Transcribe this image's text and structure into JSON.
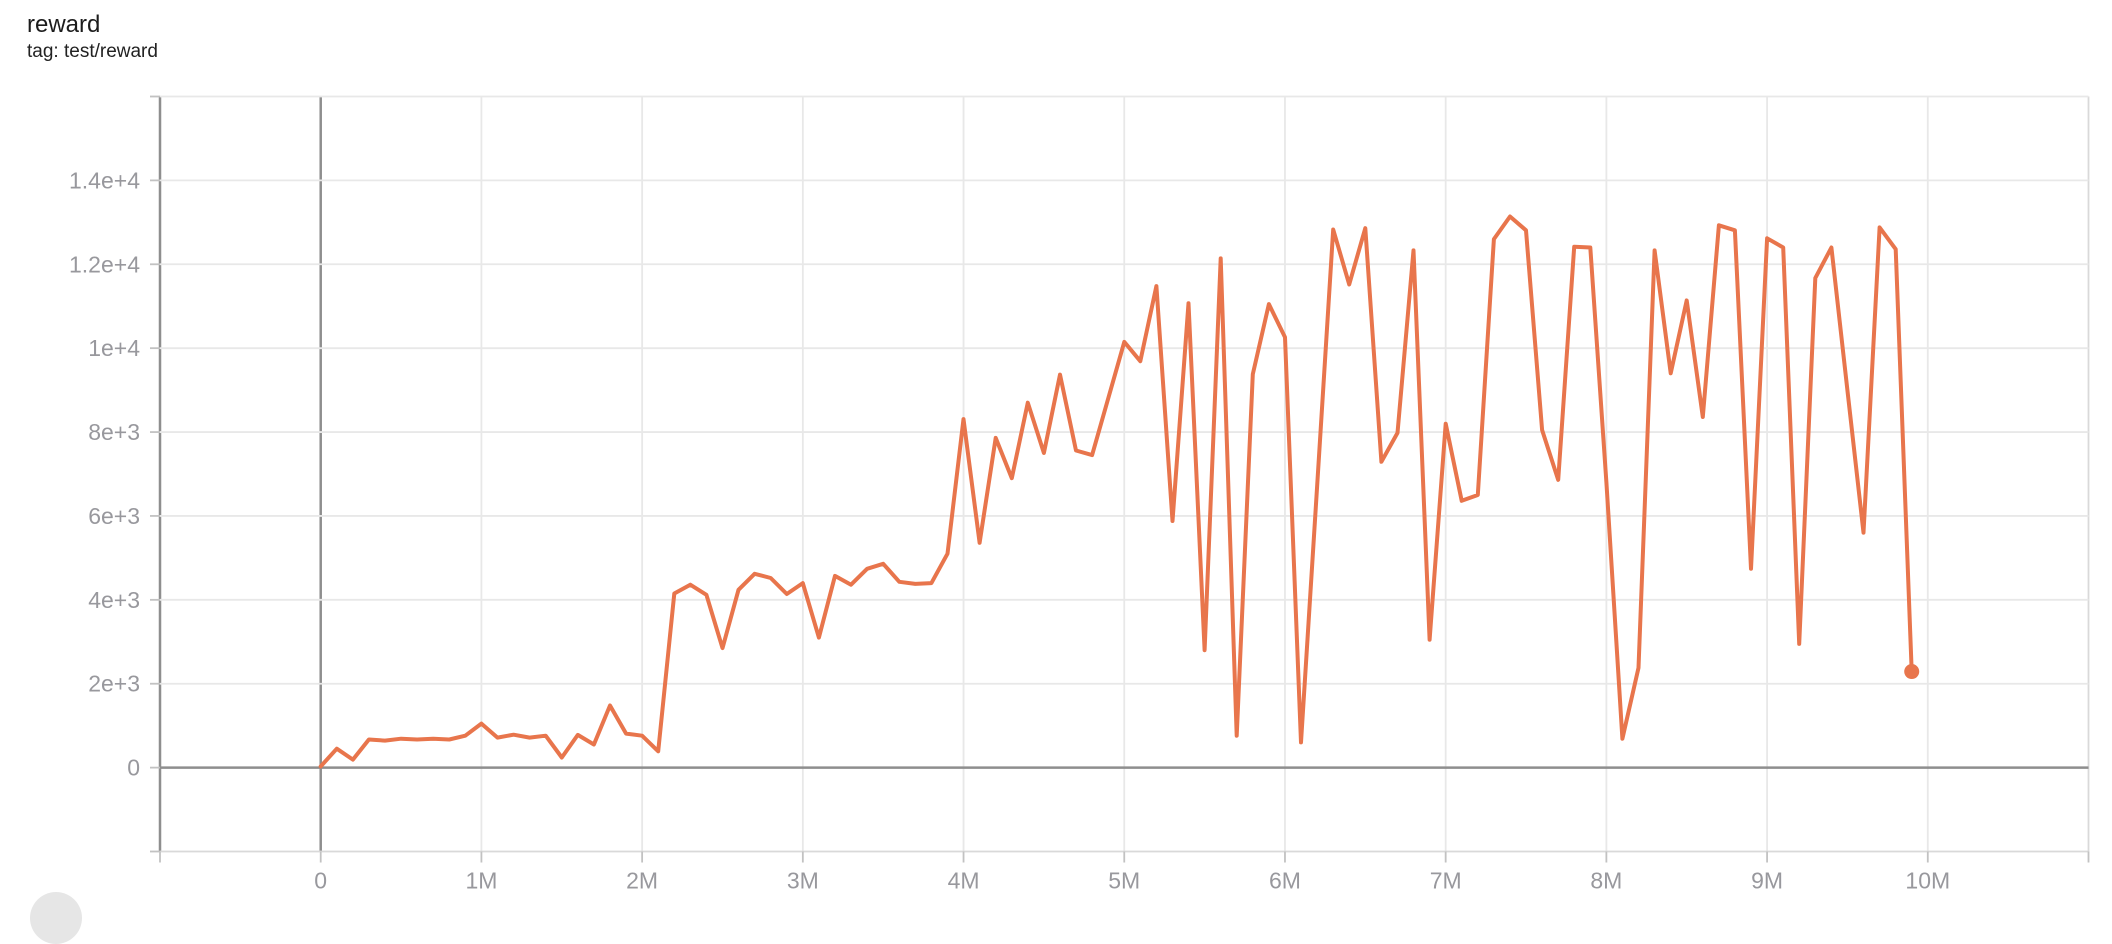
{
  "header": {
    "title": "reward",
    "subtitle": "tag: test/reward"
  },
  "colors": {
    "line": "#e8754c",
    "grid_light": "#e8e8e8",
    "axis_emphasis": "#8e8e8e",
    "plot_border": "#d9d9d9",
    "tick": "#c2c2c2",
    "tick_label": "#98989d",
    "title_text": "#1c1c1c"
  },
  "chart_data": {
    "type": "line",
    "title": "reward",
    "tag": "test/reward",
    "series_name": "test/reward",
    "x_unit": "M (millions of steps)",
    "xlim_millions": [
      -1,
      11
    ],
    "ylim": [
      -2000,
      16000
    ],
    "grid": true,
    "x_tick_values": [
      0,
      1,
      2,
      3,
      4,
      5,
      6,
      7,
      8,
      9,
      10
    ],
    "x_tick_labels": [
      "0",
      "1M",
      "2M",
      "3M",
      "4M",
      "5M",
      "6M",
      "7M",
      "8M",
      "9M",
      "10M"
    ],
    "y_tick_values": [
      0,
      2000,
      4000,
      6000,
      8000,
      10000,
      12000,
      14000
    ],
    "y_tick_labels": [
      "0",
      "2e+3",
      "4e+3",
      "6e+3",
      "8e+3",
      "1e+4",
      "1.2e+4",
      "1.4e+4"
    ],
    "end_marker": true,
    "x": [
      0.0,
      0.1,
      0.2,
      0.3,
      0.4,
      0.5,
      0.6,
      0.7,
      0.8,
      0.9,
      1.0,
      1.1,
      1.2,
      1.3,
      1.4,
      1.5,
      1.6,
      1.7,
      1.8,
      1.9,
      2.0,
      2.1,
      2.2,
      2.3,
      2.4,
      2.5,
      2.6,
      2.7,
      2.8,
      2.9,
      3.0,
      3.1,
      3.2,
      3.3,
      3.4,
      3.5,
      3.6,
      3.7,
      3.8,
      3.9,
      4.0,
      4.1,
      4.2,
      4.3,
      4.4,
      4.5,
      4.6,
      4.7,
      4.8,
      4.9,
      5.0,
      5.1,
      5.2,
      5.3,
      5.4,
      5.5,
      5.6,
      5.7,
      5.8,
      5.9,
      6.0,
      6.1,
      6.2,
      6.3,
      6.4,
      6.5,
      6.6,
      6.7,
      6.8,
      6.9,
      7.0,
      7.1,
      7.2,
      7.3,
      7.4,
      7.5,
      7.6,
      7.7,
      7.8,
      7.9,
      8.0,
      8.1,
      8.2,
      8.3,
      8.4,
      8.5,
      8.6,
      8.7,
      8.8,
      8.9,
      9.0,
      9.1,
      9.2,
      9.3,
      9.4,
      9.5,
      9.6,
      9.7,
      9.8,
      9.9
    ],
    "values": [
      30,
      450,
      190,
      670,
      645,
      690,
      670,
      690,
      670,
      760,
      1050,
      715,
      785,
      715,
      760,
      240,
      780,
      550,
      1480,
      810,
      760,
      390,
      4150,
      4360,
      4120,
      2850,
      4240,
      4620,
      4520,
      4140,
      4400,
      3100,
      4570,
      4360,
      4740,
      4860,
      4430,
      4380,
      4400,
      5100,
      8310,
      5360,
      7860,
      6900,
      8700,
      7500,
      9370,
      7560,
      7450,
      8800,
      10150,
      9690,
      11480,
      5880,
      11070,
      2800,
      12140,
      760,
      9380,
      11050,
      10260,
      600,
      6700,
      12830,
      11520,
      12860,
      7290,
      7980,
      12330,
      3050,
      8200,
      6360,
      6500,
      12600,
      13140,
      12810,
      8050,
      6860,
      12420,
      12400,
      6800,
      690,
      2380,
      12330,
      9400,
      11140,
      8360,
      12930,
      12810,
      4740,
      12620,
      12400,
      2950,
      11670,
      12400,
      9000,
      5600,
      12880,
      12360,
      2290
    ]
  }
}
